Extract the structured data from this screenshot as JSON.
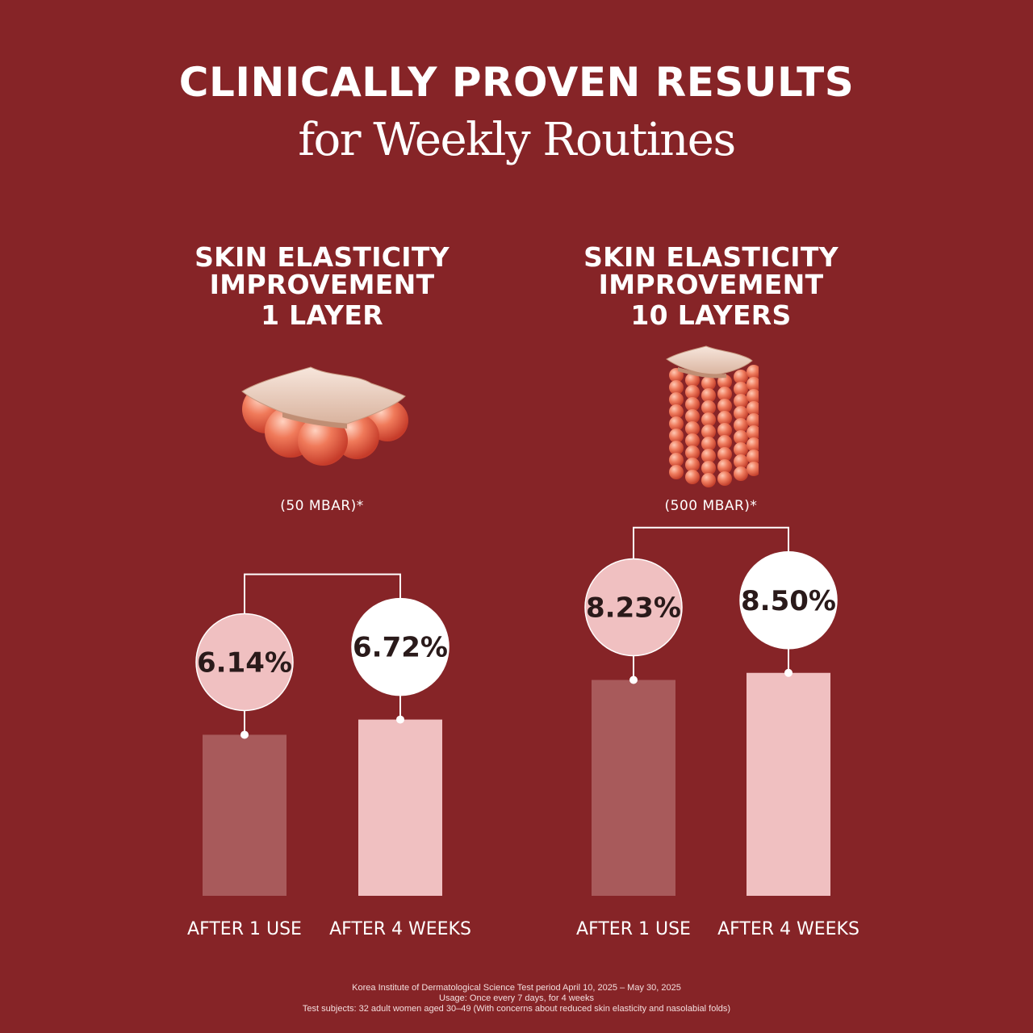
{
  "header": {
    "title": "CLINICALLY PROVEN RESULTS",
    "subtitle": "for Weekly Routines"
  },
  "panels": [
    {
      "heading": [
        "SKIN ELASTICITY",
        "IMPROVEMENT",
        "1 LAYER"
      ],
      "pressure": "(50 MBAR)*",
      "illustration": "single-layer-cells-icon"
    },
    {
      "heading": [
        "SKIN ELASTICITY",
        "IMPROVEMENT",
        "10 LAYERS"
      ],
      "pressure": "(500 MBAR)*",
      "illustration": "ten-layer-cells-icon"
    }
  ],
  "chart_data": [
    {
      "type": "bar",
      "title": "SKIN ELASTICITY IMPROVEMENT 1 LAYER",
      "categories": [
        "AFTER 1 USE",
        "AFTER 4 WEEKS"
      ],
      "values": [
        6.14,
        6.72
      ],
      "value_labels": [
        "6.14%",
        "6.72%"
      ],
      "colors": [
        "#a85a5b",
        "#f0c0c1"
      ]
    },
    {
      "type": "bar",
      "title": "SKIN ELASTICITY IMPROVEMENT 10 LAYERS",
      "categories": [
        "AFTER 1 USE",
        "AFTER 4 WEEKS"
      ],
      "values": [
        8.23,
        8.5
      ],
      "value_labels": [
        "8.23%",
        "8.50%"
      ],
      "colors": [
        "#a85a5b",
        "#f0c0c1"
      ]
    }
  ],
  "footnote": [
    "Korea Institute of Dermatological Science Test period April 10, 2025 – May 30, 2025",
    "Usage: Once every 7 days, for 4 weeks",
    "Test subjects: 32 adult women aged 30–49 (With concerns about reduced skin elasticity and nasolabial folds)"
  ],
  "colors": {
    "background": "#862427",
    "bar_after_1_use": "#a85a5b",
    "bar_after_4_weeks": "#f0c0c1",
    "bubble_after_1_use": "#f0c0c1",
    "bubble_after_4_weeks": "#ffffff",
    "value_text": "#2a1a1a"
  }
}
